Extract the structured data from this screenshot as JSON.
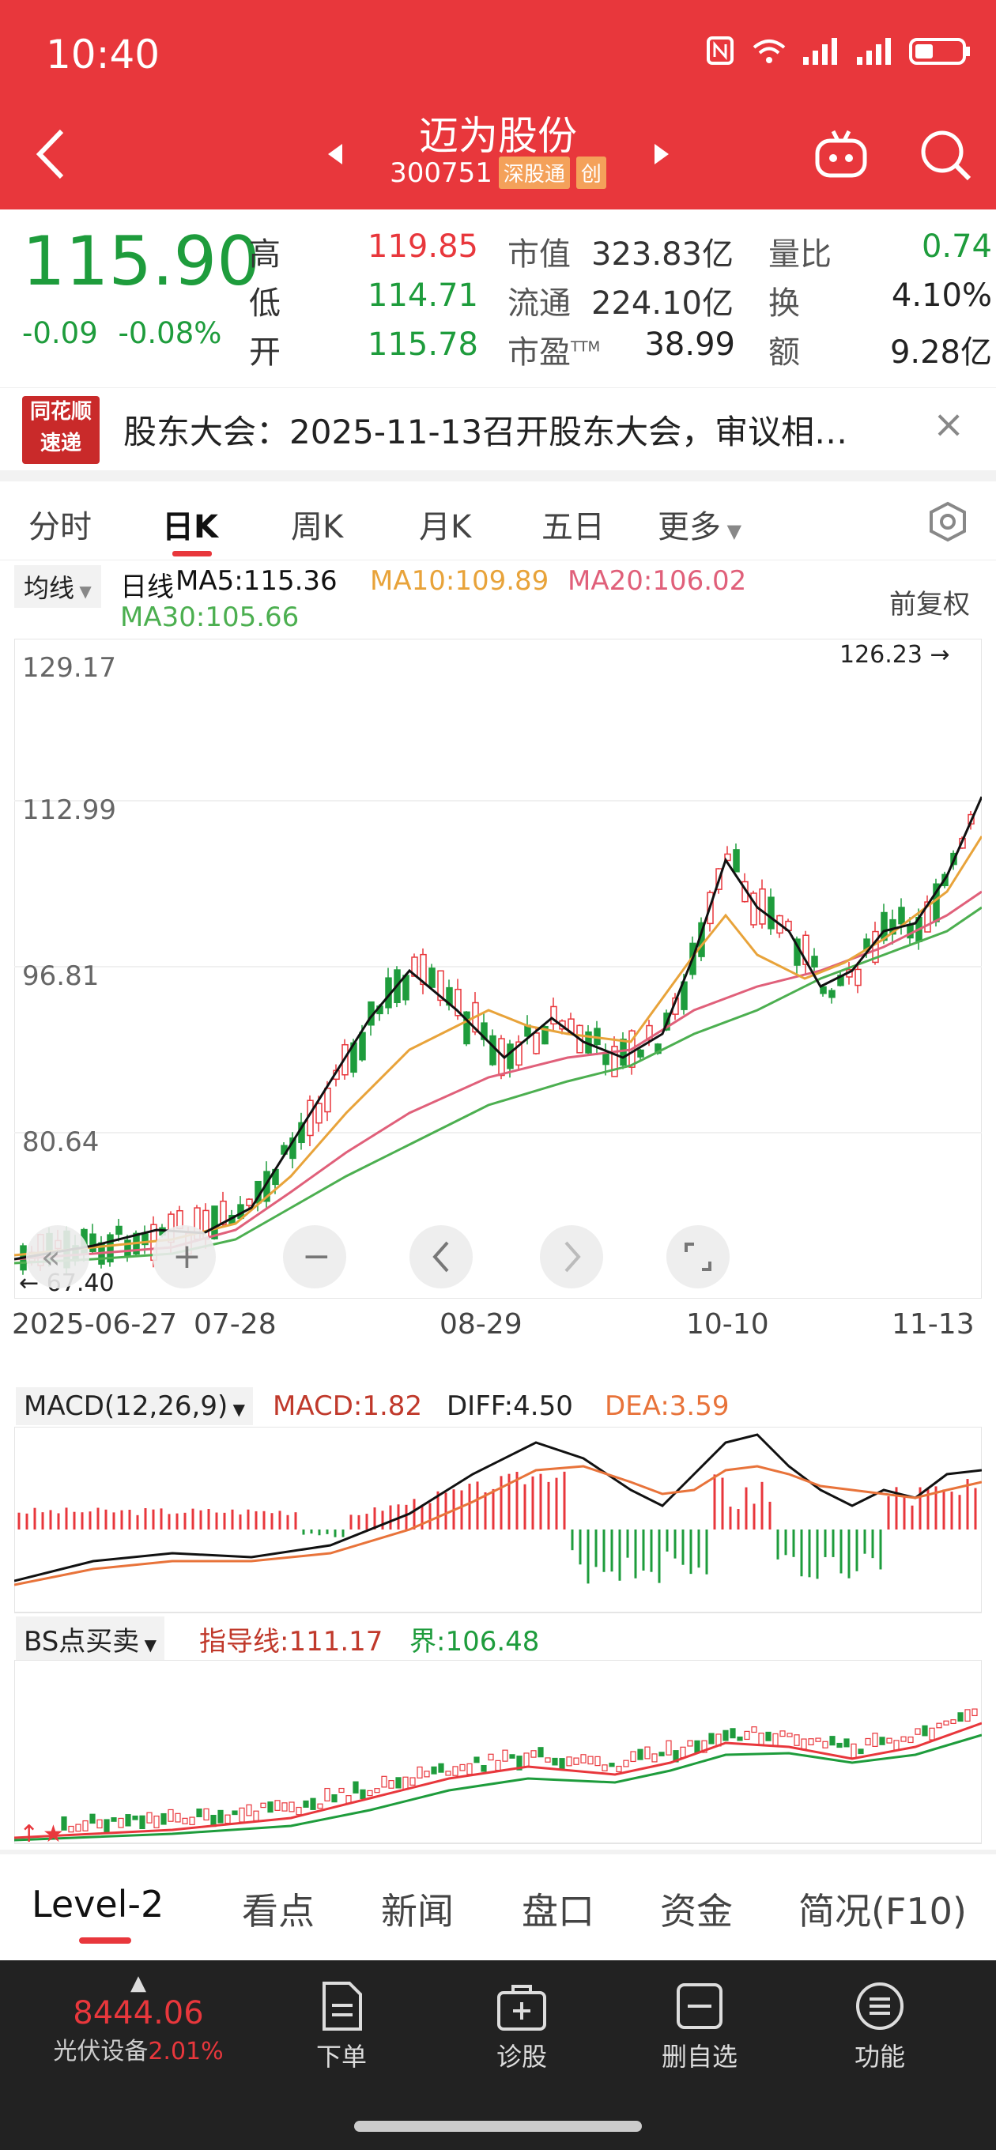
{
  "status_bar": {
    "time": "10:40"
  },
  "header": {
    "stock_name": "迈为股份",
    "stock_code": "300751",
    "badge_connect": "深股通",
    "badge_board": "创"
  },
  "quote": {
    "price": "115.90",
    "change": "-0.09",
    "change_pct": "-0.08%",
    "labels": {
      "high": "高",
      "low": "低",
      "open": "开",
      "mktcap": "市值",
      "float": "流通",
      "pe": "市盈",
      "pe_sup": "TTM",
      "vol_ratio": "量比",
      "turnover": "换",
      "amount": "额"
    },
    "high": "119.85",
    "low": "114.71",
    "open": "115.78",
    "mktcap": "323.83亿",
    "float": "224.10亿",
    "pe": "38.99",
    "vol_ratio": "0.74",
    "turnover": "4.10%",
    "amount": "9.28亿"
  },
  "news": {
    "logo_line1": "同花顺",
    "logo_line2": "速递",
    "text": "股东大会：2025-11-13召开股东大会，审议相…"
  },
  "period_tabs": [
    "分时",
    "日K",
    "周K",
    "月K",
    "五日",
    "更多"
  ],
  "ma_legend": {
    "button": "均线",
    "line_label": "日线",
    "ma5": "MA5:115.36",
    "ma10": "MA10:109.89",
    "ma20": "MA20:106.02",
    "ma30": "MA30:105.66",
    "adjust": "前复权"
  },
  "main_chart": {
    "y_labels": [
      "129.17",
      "112.99",
      "96.81",
      "80.64"
    ],
    "max_label": "126.23",
    "min_label": "67.40",
    "x_labels": [
      "2025-06-27",
      "07-28",
      "08-29",
      "10-10",
      "11-13"
    ]
  },
  "macd": {
    "button": "MACD(12,26,9)",
    "macd": "MACD:1.82",
    "diff": "DIFF:4.50",
    "dea": "DEA:3.59"
  },
  "bs": {
    "button": "BS点买卖",
    "guide": "指导线:111.17",
    "bound": "界:106.48"
  },
  "bottom_tabs": [
    "Level-2",
    "看点",
    "新闻",
    "盘口",
    "资金",
    "简况(F10)"
  ],
  "bottom_nav": {
    "index_value": "8444.06",
    "index_name": "光伏设备",
    "index_pct": "2.01%",
    "items": [
      "下单",
      "诊股",
      "删自选",
      "功能"
    ]
  },
  "colors": {
    "brand_red": "#e8373c",
    "down_green": "#1e9c3c",
    "ma5": "#111111",
    "ma10": "#e8a33a",
    "ma20": "#e0607a",
    "ma30": "#4caf50"
  }
}
